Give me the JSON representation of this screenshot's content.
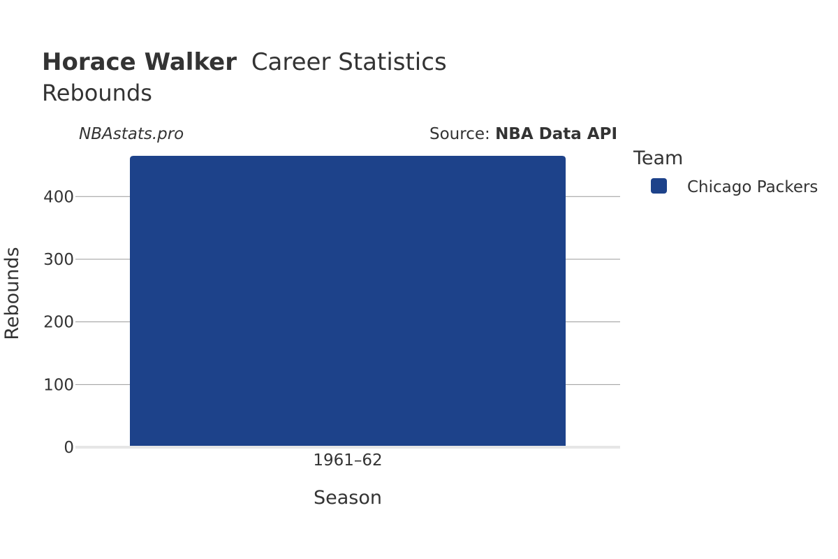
{
  "header": {
    "title_bold": "Horace Walker",
    "title_rest": "Career Statistics",
    "subtitle": "Rebounds"
  },
  "credits": {
    "site": "NBAstats.pro",
    "source_prefix": "Source: ",
    "source_name": "NBA Data API"
  },
  "legend": {
    "title": "Team",
    "items": [
      {
        "label": "Chicago Packers",
        "color": "#1d428a"
      }
    ]
  },
  "chart_data": {
    "type": "bar",
    "xlabel": "Season",
    "ylabel": "Rebounds",
    "categories": [
      "1961–62"
    ],
    "series": [
      {
        "name": "Chicago Packers",
        "values": [
          465
        ],
        "color": "#1d428a"
      }
    ],
    "ylim": [
      0,
      465
    ],
    "yticks": [
      0,
      100,
      200,
      300,
      400
    ],
    "grid": true,
    "legend_position": "right"
  }
}
